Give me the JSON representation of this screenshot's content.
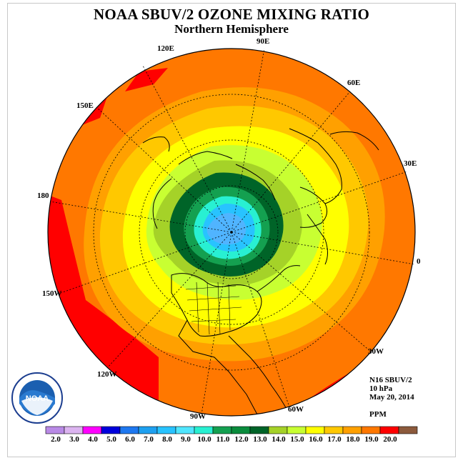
{
  "title": "NOAA SBUV/2 OZONE MIXING RATIO",
  "subtitle": "Northern Hemisphere",
  "longitude_labels": [
    "120E",
    "90E",
    "60E",
    "150E",
    "30E",
    "180",
    "0",
    "150W",
    "30W",
    "120W",
    "60W",
    "90W"
  ],
  "info": {
    "satellite": "N16 SBUV/2",
    "level": "10 hPa",
    "date": "May 20, 2014",
    "units": "PPM"
  },
  "colorbar": {
    "labels": [
      "2.0",
      "3.0",
      "4.0",
      "5.0",
      "6.0",
      "7.0",
      "8.0",
      "9.0",
      "10.0",
      "11.0",
      "12.0",
      "13.0",
      "14.0",
      "15.0",
      "16.0",
      "17.0",
      "18.0",
      "19.0",
      "20.0"
    ],
    "colors": [
      "#b98ae6",
      "#dcb4f0",
      "#ff00ff",
      "#0000dc",
      "#1e78f0",
      "#1ea0f0",
      "#28c3ff",
      "#50e6ff",
      "#28f0d2",
      "#14a050",
      "#0a8c3c",
      "#006428",
      "#a5d228",
      "#c8ff32",
      "#ffff00",
      "#ffc800",
      "#ffa000",
      "#ff7800",
      "#ff0000",
      "#8c5a3c"
    ]
  },
  "logo_text": "NOAA"
}
